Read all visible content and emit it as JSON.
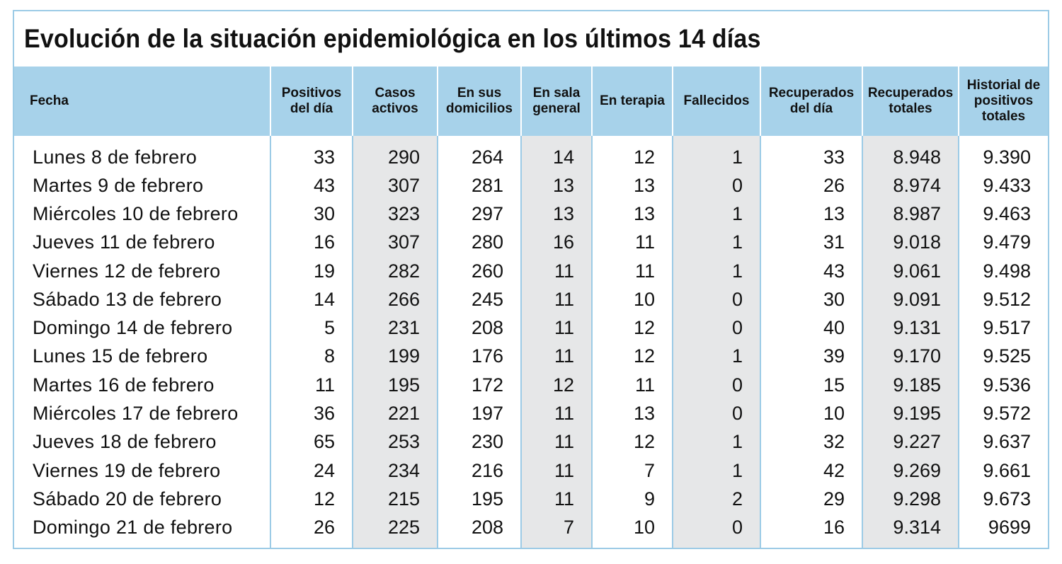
{
  "title": "Evolución de la situación epidemiológica en los últimos 14 días",
  "colors": {
    "header_bg": "#a7d2ea",
    "border": "#9ccbe6",
    "shaded_column": "#e6e7e8"
  },
  "headers": [
    "Fecha",
    "Positivos del día",
    "Casos activos",
    "En sus domicilios",
    "En sala general",
    "En terapia",
    "Fallecidos",
    "Recuperados del día",
    "Recuperados totales",
    "Historial de positivos totales"
  ],
  "rows": [
    [
      "Lunes 8 de febrero",
      "33",
      "290",
      "264",
      "14",
      "12",
      "1",
      "33",
      "8.948",
      "9.390"
    ],
    [
      "Martes 9 de febrero",
      "43",
      "307",
      "281",
      "13",
      "13",
      "0",
      "26",
      "8.974",
      "9.433"
    ],
    [
      "Miércoles 10 de febrero",
      "30",
      "323",
      "297",
      "13",
      "13",
      "1",
      "13",
      "8.987",
      "9.463"
    ],
    [
      "Jueves 11 de febrero",
      "16",
      "307",
      "280",
      "16",
      "11",
      "1",
      "31",
      "9.018",
      "9.479"
    ],
    [
      "Viernes 12 de febrero",
      "19",
      "282",
      "260",
      "11",
      "11",
      "1",
      "43",
      "9.061",
      "9.498"
    ],
    [
      "Sábado 13 de febrero",
      "14",
      "266",
      "245",
      "11",
      "10",
      "0",
      "30",
      "9.091",
      "9.512"
    ],
    [
      "Domingo 14 de febrero",
      "5",
      "231",
      "208",
      "11",
      "12",
      "0",
      "40",
      "9.131",
      "9.517"
    ],
    [
      "Lunes 15 de febrero",
      "8",
      "199",
      "176",
      "11",
      "12",
      "1",
      "39",
      "9.170",
      "9.525"
    ],
    [
      "Martes 16 de febrero",
      "11",
      "195",
      "172",
      "12",
      "11",
      "0",
      "15",
      "9.185",
      "9.536"
    ],
    [
      "Miércoles 17 de febrero",
      "36",
      "221",
      "197",
      "11",
      "13",
      "0",
      "10",
      "9.195",
      "9.572"
    ],
    [
      "Jueves 18 de febrero",
      "65",
      "253",
      "230",
      "11",
      "12",
      "1",
      "32",
      "9.227",
      "9.637"
    ],
    [
      "Viernes 19 de febrero",
      "24",
      "234",
      "216",
      "11",
      "7",
      "1",
      "42",
      "9.269",
      "9.661"
    ],
    [
      "Sábado 20 de febrero",
      "12",
      "215",
      "195",
      "11",
      "9",
      "2",
      "29",
      "9.298",
      "9.673"
    ],
    [
      "Domingo 21 de febrero",
      "26",
      "225",
      "208",
      "7",
      "10",
      "0",
      "16",
      "9.314",
      "9699"
    ]
  ]
}
